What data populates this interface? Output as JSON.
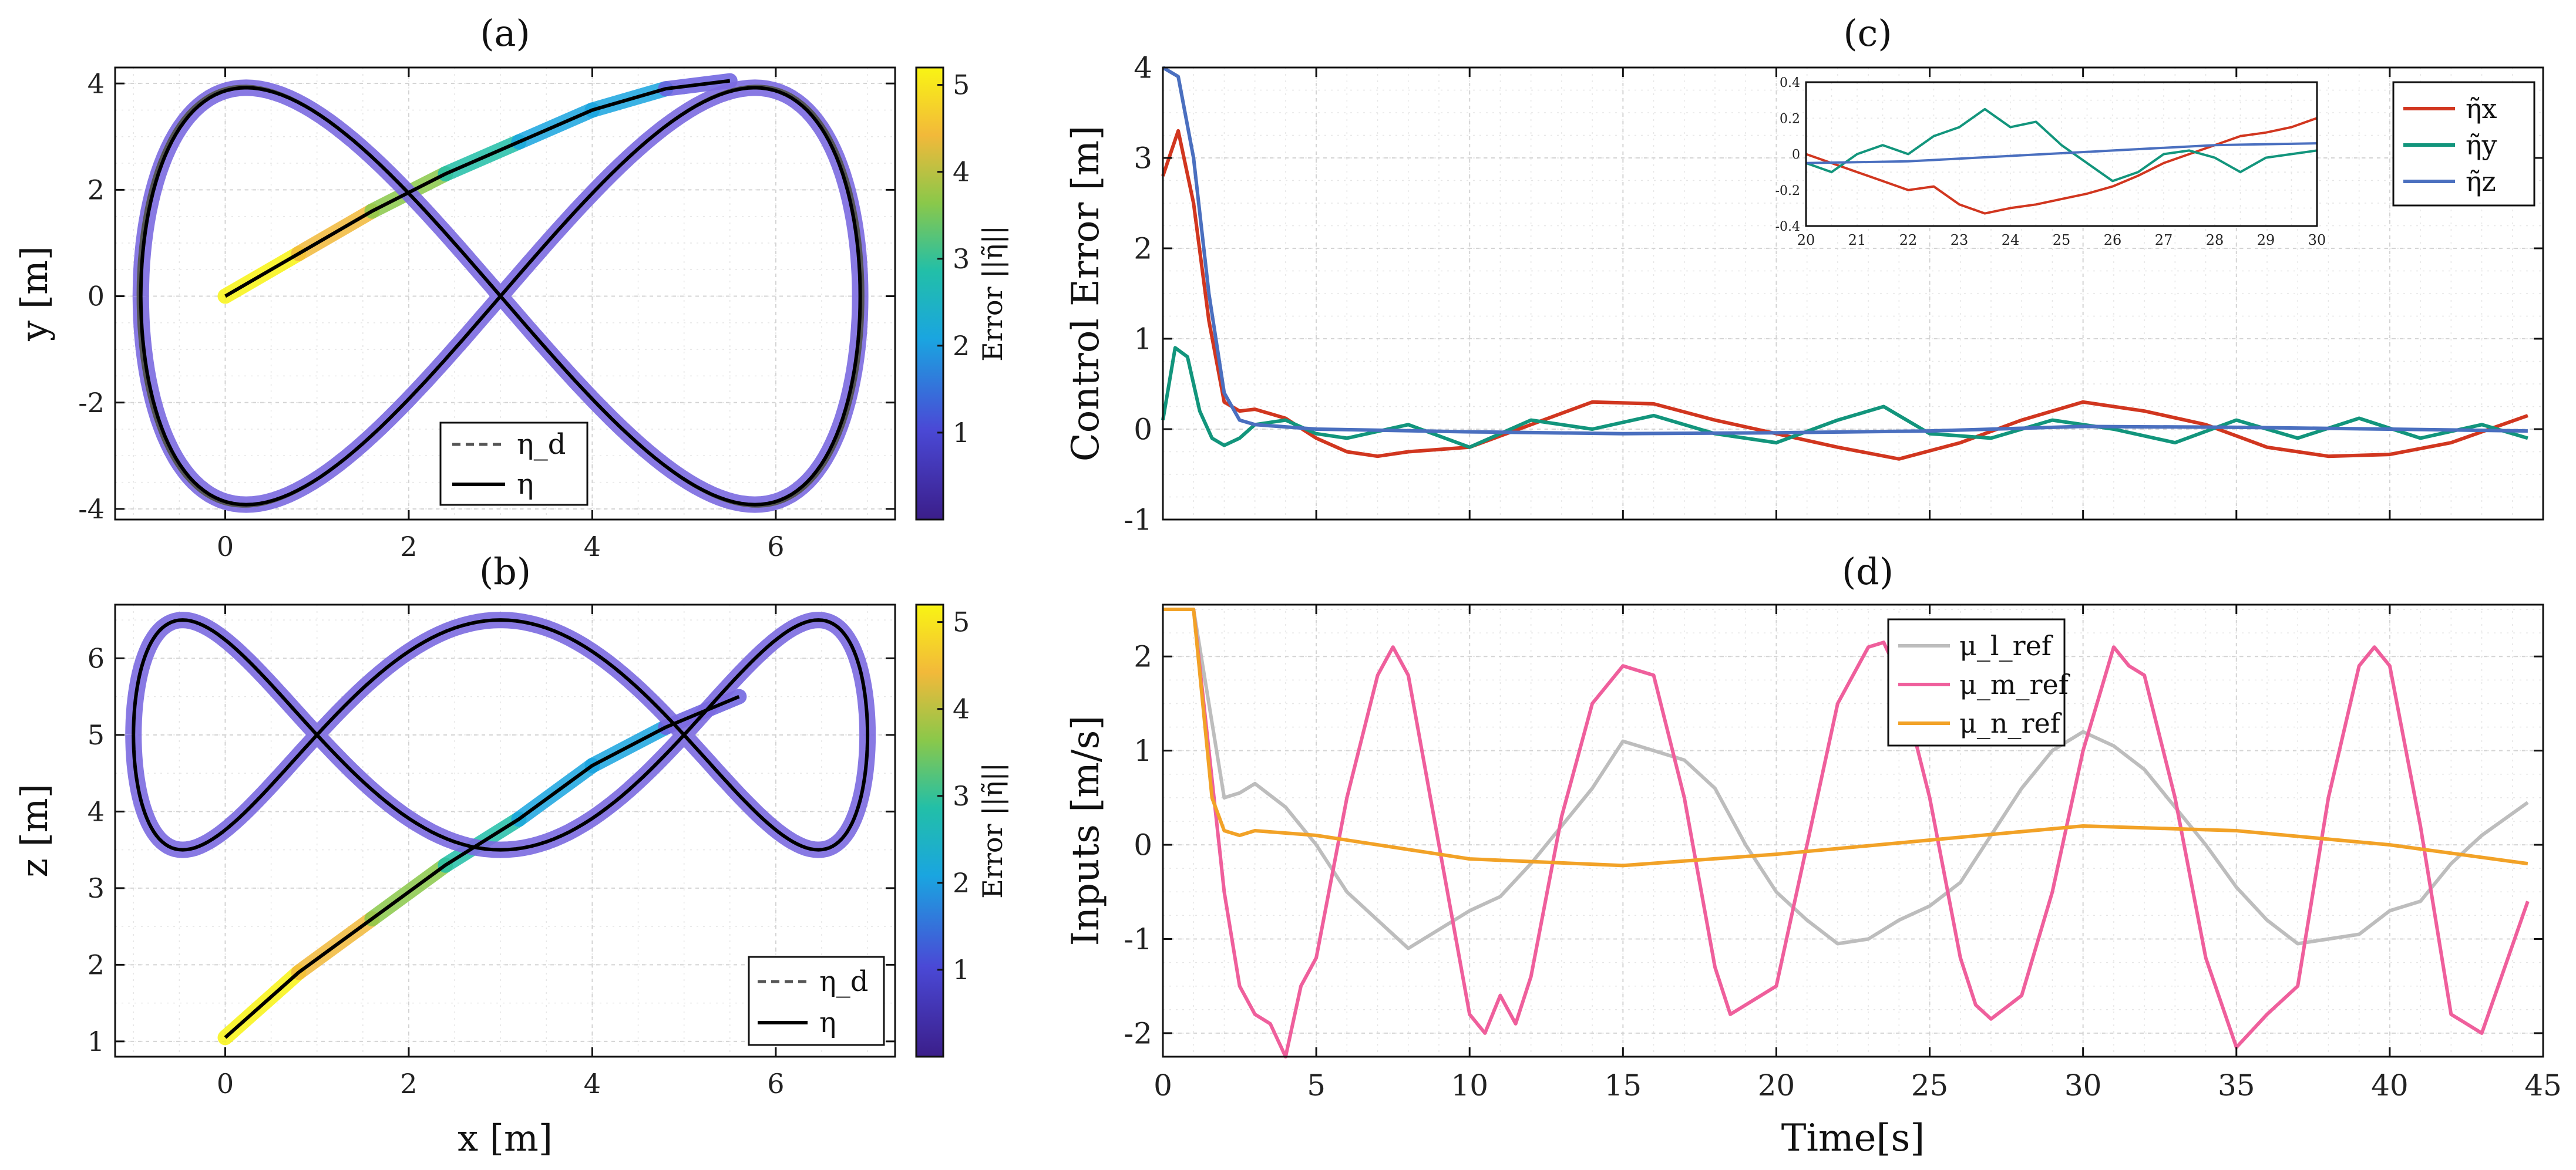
{
  "chart_data": [
    {
      "id": "a",
      "panel_label": "(a)",
      "type": "line",
      "xlabel": "x [m]",
      "ylabel": "y [m]",
      "xlim": [
        -1.2,
        7.3
      ],
      "ylim": [
        -4.2,
        4.3
      ],
      "xticks": [
        0,
        2,
        4,
        6
      ],
      "yticks": [
        -4,
        -2,
        0,
        2,
        4
      ],
      "ytick_labels": [
        "-4",
        "-2",
        "0",
        "2",
        "4"
      ],
      "grid": true,
      "legend": {
        "placement": "bottom-center",
        "entries": [
          {
            "label": "η_d",
            "style": "dashed",
            "color": "#555555"
          },
          {
            "label": "η",
            "style": "solid",
            "color": "#000000"
          }
        ]
      },
      "series": [
        {
          "name": "η_d",
          "curve": "figure-eight",
          "x_center": 3,
          "x_amplitude": 4,
          "y_amplitude": 4,
          "color": "#555555",
          "start": [
            0,
            0
          ]
        },
        {
          "name": "η",
          "curve": "figure-eight",
          "x_center": 3,
          "x_amplitude": 4,
          "y_amplitude": 4,
          "color": "#000000",
          "start": [
            0,
            0
          ]
        }
      ],
      "colorbar": {
        "label": "Error ||η̃||",
        "min": 0,
        "max": 5.2,
        "ticks": [
          1,
          2,
          3,
          4,
          5
        ]
      }
    },
    {
      "id": "b",
      "panel_label": "(b)",
      "type": "line",
      "xlabel": "x [m]",
      "ylabel": "z [m]",
      "xlim": [
        -1.2,
        7.3
      ],
      "ylim": [
        0.8,
        6.7
      ],
      "xticks": [
        0,
        2,
        4,
        6
      ],
      "yticks": [
        1,
        2,
        3,
        4,
        5,
        6
      ],
      "grid": true,
      "legend": {
        "placement": "bottom-right",
        "entries": [
          {
            "label": "η_d",
            "style": "dashed",
            "color": "#555555"
          },
          {
            "label": "η",
            "style": "solid",
            "color": "#000000"
          }
        ]
      },
      "series": [
        {
          "name": "η_d",
          "curve": "double-loop",
          "z_center": 5,
          "z_amplitude": 1.5,
          "color": "#555555",
          "start": [
            0,
            1
          ]
        },
        {
          "name": "η",
          "curve": "double-loop",
          "z_center": 5,
          "z_amplitude": 1.5,
          "color": "#000000",
          "start": [
            0,
            1
          ]
        }
      ],
      "colorbar": {
        "label": "Error ||η̃||",
        "min": 0,
        "max": 5.2,
        "ticks": [
          1,
          2,
          3,
          4,
          5
        ]
      }
    },
    {
      "id": "c",
      "panel_label": "(c)",
      "type": "line",
      "xlabel": "",
      "ylabel": "Control Error [m]",
      "xlim": [
        0,
        45
      ],
      "ylim": [
        -1,
        4
      ],
      "xticks": [
        0,
        5,
        10,
        15,
        20,
        25,
        30,
        35,
        40,
        45
      ],
      "yticks": [
        -1,
        0,
        1,
        2,
        3,
        4
      ],
      "grid": true,
      "legend": {
        "placement": "top-right",
        "entries": [
          {
            "label": "η̃x",
            "color": "#d1361f"
          },
          {
            "label": "η̃y",
            "color": "#12957c"
          },
          {
            "label": "η̃z",
            "color": "#4a6fbf"
          }
        ]
      },
      "series": [
        {
          "name": "η̃x",
          "color": "#d1361f",
          "x": [
            0,
            0.5,
            1,
            1.5,
            2,
            2.5,
            3,
            4,
            5,
            6,
            7,
            8,
            10,
            12,
            14,
            16,
            18,
            20,
            22,
            24,
            26,
            28,
            30,
            32,
            34,
            36,
            38,
            40,
            42,
            44.5
          ],
          "y": [
            2.8,
            3.3,
            2.5,
            1.2,
            0.3,
            0.2,
            0.22,
            0.12,
            -0.1,
            -0.25,
            -0.3,
            -0.25,
            -0.2,
            0.05,
            0.3,
            0.28,
            0.1,
            -0.05,
            -0.2,
            -0.33,
            -0.15,
            0.1,
            0.3,
            0.2,
            0.05,
            -0.2,
            -0.3,
            -0.28,
            -0.15,
            0.15
          ]
        },
        {
          "name": "η̃y",
          "color": "#12957c",
          "x": [
            0,
            0.4,
            0.8,
            1.2,
            1.6,
            2,
            2.5,
            3,
            4,
            5,
            6,
            8,
            10,
            12,
            14,
            16,
            18,
            20,
            22,
            23.5,
            25,
            27,
            29,
            31,
            33,
            35,
            37,
            39,
            41,
            43,
            44.5
          ],
          "y": [
            0.1,
            0.9,
            0.8,
            0.2,
            -0.1,
            -0.18,
            -0.1,
            0.05,
            0.1,
            -0.05,
            -0.1,
            0.05,
            -0.2,
            0.1,
            0.0,
            0.15,
            -0.05,
            -0.15,
            0.1,
            0.25,
            -0.05,
            -0.1,
            0.1,
            0.0,
            -0.15,
            0.1,
            -0.1,
            0.12,
            -0.1,
            0.05,
            -0.1
          ]
        },
        {
          "name": "η̃z",
          "color": "#4a6fbf",
          "x": [
            0,
            0.5,
            1,
            1.5,
            2,
            2.5,
            3,
            5,
            10,
            15,
            20,
            25,
            30,
            35,
            40,
            44.5
          ],
          "y": [
            4.0,
            3.9,
            3.0,
            1.5,
            0.4,
            0.1,
            0.05,
            0.0,
            -0.03,
            -0.05,
            -0.04,
            -0.02,
            0.03,
            0.02,
            0.0,
            -0.02
          ]
        }
      ],
      "inset": {
        "xlim": [
          20,
          30
        ],
        "ylim": [
          -0.4,
          0.4
        ],
        "xticks": [
          20,
          21,
          22,
          23,
          24,
          25,
          26,
          27,
          28,
          29,
          30
        ],
        "yticks": [
          -0.4,
          -0.2,
          0,
          0.2,
          0.4
        ],
        "ytick_labels": [
          "-0.4",
          "-0.2",
          "0",
          "0.2",
          "0.4"
        ],
        "series": [
          {
            "name": "η̃x",
            "color": "#d1361f",
            "x": [
              20,
              20.5,
              21,
              21.5,
              22,
              22.5,
              23,
              23.5,
              24,
              24.5,
              25,
              25.5,
              26,
              26.5,
              27,
              27.5,
              28,
              28.5,
              29,
              29.5,
              30
            ],
            "y": [
              0.0,
              -0.05,
              -0.1,
              -0.15,
              -0.2,
              -0.18,
              -0.28,
              -0.33,
              -0.3,
              -0.28,
              -0.25,
              -0.22,
              -0.18,
              -0.12,
              -0.05,
              0.0,
              0.05,
              0.1,
              0.12,
              0.15,
              0.2
            ]
          },
          {
            "name": "η̃y",
            "color": "#12957c",
            "x": [
              20,
              20.5,
              21,
              21.5,
              22,
              22.5,
              23,
              23.5,
              24,
              24.5,
              25,
              25.5,
              26,
              26.5,
              27,
              27.5,
              28,
              28.5,
              29,
              29.5,
              30
            ],
            "y": [
              -0.05,
              -0.1,
              0.0,
              0.05,
              0.0,
              0.1,
              0.15,
              0.25,
              0.15,
              0.18,
              0.05,
              -0.05,
              -0.15,
              -0.1,
              0.0,
              0.02,
              -0.02,
              -0.1,
              -0.02,
              0.0,
              0.02
            ]
          },
          {
            "name": "η̃z",
            "color": "#4a6fbf",
            "x": [
              20,
              22,
              24,
              26,
              28,
              30
            ],
            "y": [
              -0.05,
              -0.04,
              -0.01,
              0.02,
              0.05,
              0.06
            ]
          }
        ]
      }
    },
    {
      "id": "d",
      "panel_label": "(d)",
      "type": "line",
      "xlabel": "Time[s]",
      "ylabel": "Inputs [m/s]",
      "xlim": [
        0,
        45
      ],
      "ylim": [
        -2.25,
        2.55
      ],
      "xticks": [
        0,
        5,
        10,
        15,
        20,
        25,
        30,
        35,
        40,
        45
      ],
      "yticks": [
        -2,
        -1,
        0,
        1,
        2
      ],
      "ytick_labels": [
        "-2",
        "-1",
        "0",
        "1",
        "2"
      ],
      "grid": true,
      "legend": {
        "placement": "top-center",
        "entries": [
          {
            "label": "μ_l_ref",
            "color": "#bdbdbd"
          },
          {
            "label": "μ_m_ref",
            "color": "#ef5f9c"
          },
          {
            "label": "μ_n_ref",
            "color": "#f2a227"
          }
        ]
      },
      "series": [
        {
          "name": "μ_l_ref",
          "color": "#bdbdbd",
          "x": [
            0,
            1,
            1.5,
            2,
            2.5,
            3,
            4,
            5,
            6,
            7,
            8,
            9,
            10,
            11,
            12,
            13,
            14,
            15,
            16,
            17,
            18,
            19,
            20,
            21,
            22,
            23,
            24,
            25,
            26,
            27,
            28,
            29,
            30,
            31,
            32,
            33,
            34,
            35,
            36,
            37,
            38,
            39,
            40,
            41,
            42,
            43,
            44.5
          ],
          "y": [
            2.5,
            2.5,
            1.5,
            0.5,
            0.55,
            0.65,
            0.4,
            0.0,
            -0.5,
            -0.8,
            -1.1,
            -0.9,
            -0.7,
            -0.55,
            -0.2,
            0.2,
            0.6,
            1.1,
            1.0,
            0.9,
            0.6,
            0.0,
            -0.5,
            -0.8,
            -1.05,
            -1.0,
            -0.8,
            -0.65,
            -0.4,
            0.1,
            0.6,
            1.0,
            1.2,
            1.05,
            0.8,
            0.4,
            0.0,
            -0.45,
            -0.8,
            -1.05,
            -1.0,
            -0.95,
            -0.7,
            -0.6,
            -0.2,
            0.1,
            0.45
          ]
        },
        {
          "name": "μ_m_ref",
          "color": "#ef5f9c",
          "x": [
            0,
            1,
            1.5,
            2,
            2.5,
            3,
            3.5,
            4,
            4.5,
            5,
            6,
            7,
            7.5,
            8,
            9,
            10,
            10.5,
            11,
            11.5,
            12,
            13,
            14,
            15,
            16,
            17,
            18,
            18.5,
            19,
            20,
            21,
            22,
            23,
            23.5,
            24,
            25,
            26,
            26.5,
            27,
            28,
            29,
            30,
            31,
            31.5,
            32,
            33,
            34,
            35,
            36,
            37,
            38,
            39,
            39.5,
            40,
            41,
            42,
            43,
            44.5
          ],
          "y": [
            2.5,
            2.5,
            1.0,
            -0.5,
            -1.5,
            -1.8,
            -1.9,
            -2.25,
            -1.5,
            -1.2,
            0.5,
            1.8,
            2.1,
            1.8,
            0.0,
            -1.8,
            -2.0,
            -1.6,
            -1.9,
            -1.4,
            0.3,
            1.5,
            1.9,
            1.8,
            0.5,
            -1.3,
            -1.8,
            -1.7,
            -1.5,
            0.0,
            1.5,
            2.1,
            2.15,
            1.8,
            0.5,
            -1.2,
            -1.7,
            -1.85,
            -1.6,
            -0.5,
            1.0,
            2.1,
            1.9,
            1.8,
            0.5,
            -1.2,
            -2.15,
            -1.8,
            -1.5,
            0.5,
            1.9,
            2.1,
            1.9,
            0.2,
            -1.8,
            -2.0,
            -0.6
          ]
        },
        {
          "name": "μ_n_ref",
          "color": "#f2a227",
          "x": [
            0,
            1,
            1.3,
            1.6,
            2,
            2.5,
            3,
            5,
            10,
            15,
            20,
            25,
            30,
            35,
            40,
            44.5
          ],
          "y": [
            2.5,
            2.5,
            1.5,
            0.5,
            0.15,
            0.1,
            0.15,
            0.1,
            -0.15,
            -0.22,
            -0.1,
            0.05,
            0.2,
            0.15,
            0.0,
            -0.2
          ]
        }
      ]
    }
  ]
}
